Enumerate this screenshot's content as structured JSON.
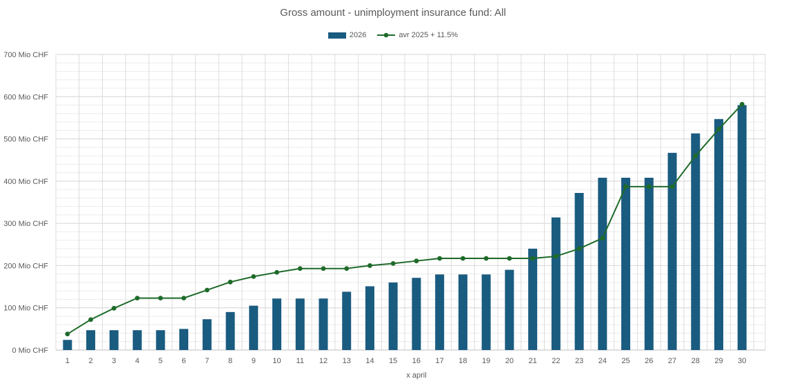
{
  "chart_data": {
    "type": "bar",
    "title": "Gross amount - unimployment insurance fund: All",
    "xlabel": "x april",
    "ylabel": "",
    "ylim": [
      0,
      700
    ],
    "yticks": [
      "0  Mio CHF",
      "100  Mio CHF",
      "200  Mio CHF",
      "300  Mio CHF",
      "400  Mio CHF",
      "500  Mio CHF",
      "600  Mio CHF",
      "700  Mio CHF"
    ],
    "categories": [
      "1",
      "2",
      "3",
      "4",
      "5",
      "6",
      "7",
      "8",
      "9",
      "10",
      "11",
      "12",
      "13",
      "14",
      "15",
      "16",
      "17",
      "18",
      "19",
      "20",
      "21",
      "22",
      "23",
      "24",
      "25",
      "26",
      "27",
      "28",
      "29",
      "30"
    ],
    "grid": true,
    "legend_position": "top",
    "series": [
      {
        "name": "2026",
        "type": "bar",
        "color": "#1a5b80",
        "values": [
          24,
          47,
          47,
          47,
          47,
          50,
          73,
          90,
          105,
          122,
          122,
          122,
          138,
          151,
          160,
          171,
          179,
          179,
          179,
          190,
          240,
          314,
          372,
          408,
          408,
          408,
          467,
          513,
          547,
          580
        ]
      },
      {
        "name": "avr 2025 + 11.5%",
        "type": "line",
        "color": "#1e6b2a",
        "values": [
          38,
          72,
          99,
          123,
          123,
          123,
          142,
          161,
          174,
          184,
          193,
          193,
          193,
          200,
          205,
          211,
          217,
          217,
          217,
          217,
          217,
          222,
          240,
          265,
          387,
          387,
          387,
          460,
          523,
          582
        ]
      }
    ]
  }
}
